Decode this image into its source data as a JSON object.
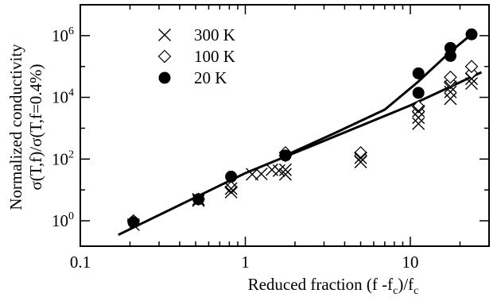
{
  "chart_data": {
    "type": "scatter",
    "xlabel_parts": [
      "Reduced fraction (f -f",
      "c",
      ")/f",
      "c"
    ],
    "ylabel_lines": [
      "Normalized conductivity",
      "σ(T,f)/σ(T,f=0.4%)"
    ],
    "x_scale": "log",
    "y_scale": "log",
    "xlim": [
      0.1,
      30
    ],
    "ylim": [
      0.15,
      10000000
    ],
    "x_ticks": [
      {
        "value": 0.1,
        "label": "0.1"
      },
      {
        "value": 1,
        "label": "1"
      },
      {
        "value": 10,
        "label": "10"
      }
    ],
    "y_ticks": [
      {
        "value": 1,
        "base": "10",
        "exp": "0"
      },
      {
        "value": 100,
        "base": "10",
        "exp": "2"
      },
      {
        "value": 10000,
        "base": "10",
        "exp": "4"
      },
      {
        "value": 1000000,
        "base": "10",
        "exp": "6"
      }
    ],
    "grid": false,
    "legend_position": "top-left",
    "series": [
      {
        "name": "300 K",
        "marker": "x",
        "points": [
          [
            0.21,
            0.75
          ],
          [
            0.52,
            4.5
          ],
          [
            0.52,
            5.0
          ],
          [
            0.82,
            8.5
          ],
          [
            0.82,
            11
          ],
          [
            1.1,
            32
          ],
          [
            1.25,
            33
          ],
          [
            1.45,
            45
          ],
          [
            1.6,
            42
          ],
          [
            1.75,
            32
          ],
          [
            1.75,
            45
          ],
          [
            5.0,
            80
          ],
          [
            5.0,
            110
          ],
          [
            11.2,
            1400
          ],
          [
            11.2,
            2200
          ],
          [
            11.2,
            3600
          ],
          [
            17.5,
            9000
          ],
          [
            17.5,
            15000
          ],
          [
            17.5,
            22000
          ],
          [
            23.5,
            28000
          ],
          [
            23.5,
            40000
          ]
        ]
      },
      {
        "name": "100 K",
        "marker": "diamond",
        "points": [
          [
            0.21,
            1.0
          ],
          [
            0.52,
            5.0
          ],
          [
            0.82,
            12
          ],
          [
            1.75,
            130
          ],
          [
            1.75,
            160
          ],
          [
            5.0,
            130
          ],
          [
            5.0,
            160
          ],
          [
            11.2,
            3500
          ],
          [
            11.2,
            5000
          ],
          [
            17.5,
            30000
          ],
          [
            17.5,
            45000
          ],
          [
            23.5,
            60000
          ],
          [
            23.5,
            100000
          ]
        ]
      },
      {
        "name": "20 K",
        "marker": "circle",
        "points": [
          [
            0.21,
            0.9
          ],
          [
            0.52,
            5.0
          ],
          [
            0.82,
            27
          ],
          [
            1.75,
            130
          ],
          [
            11.2,
            14000
          ],
          [
            11.2,
            60000
          ],
          [
            17.5,
            220000
          ],
          [
            17.5,
            400000
          ],
          [
            23.5,
            1100000
          ]
        ]
      }
    ],
    "fit_lines": [
      {
        "points": [
          [
            0.17,
            0.35
          ],
          [
            1,
            35
          ],
          [
            10,
            5500
          ],
          [
            27,
            65000
          ]
        ]
      },
      {
        "points": [
          [
            1.75,
            130
          ],
          [
            3.5,
            700
          ],
          [
            7.0,
            4000
          ],
          [
            11,
            30000
          ],
          [
            17.5,
            300000
          ],
          [
            23.5,
            1100000
          ]
        ]
      }
    ]
  }
}
